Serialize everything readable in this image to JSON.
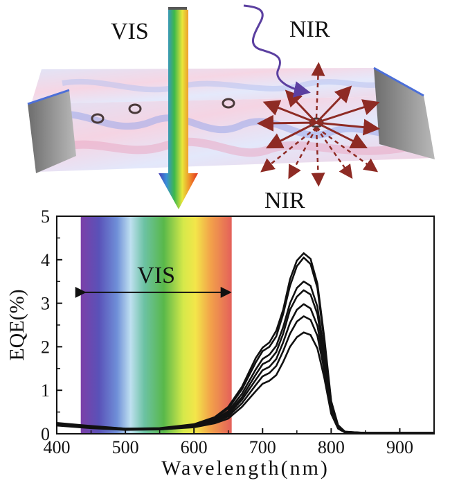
{
  "illustration": {
    "vis_label": "VIS",
    "nir_in_label": "NIR",
    "nir_out_label": "NIR",
    "colors": {
      "film_pink": "#f2c4d6",
      "film_blue": "#8f9fe0",
      "emitter": "#8e2b24",
      "arrow_in": "#5b3fa0"
    }
  },
  "chart_data": {
    "type": "line",
    "title": "",
    "xlabel": "Wavelength(nm)",
    "ylabel": "EQE(%)",
    "xlim": [
      400,
      950
    ],
    "ylim": [
      0,
      5
    ],
    "xticks": [
      400,
      500,
      600,
      700,
      800,
      900
    ],
    "yticks": [
      0,
      1,
      2,
      3,
      4,
      5
    ],
    "grid": false,
    "vis_band": {
      "label": "VIS",
      "x_range": [
        435,
        655
      ]
    },
    "x": [
      400,
      450,
      500,
      550,
      600,
      630,
      650,
      670,
      690,
      700,
      710,
      720,
      730,
      740,
      750,
      760,
      770,
      780,
      790,
      800,
      810,
      820,
      850,
      900,
      950
    ],
    "series": [
      {
        "values": [
          0.25,
          0.18,
          0.12,
          0.13,
          0.22,
          0.38,
          0.62,
          1.08,
          1.74,
          1.98,
          2.1,
          2.37,
          2.85,
          3.55,
          3.98,
          4.15,
          4.02,
          3.45,
          2.2,
          0.75,
          0.2,
          0.05,
          0.02,
          0.02,
          0.02
        ]
      },
      {
        "values": [
          0.24,
          0.17,
          0.12,
          0.12,
          0.21,
          0.36,
          0.58,
          1.02,
          1.64,
          1.9,
          2.0,
          2.24,
          2.75,
          3.4,
          3.85,
          4.05,
          3.9,
          3.35,
          2.1,
          0.72,
          0.19,
          0.05,
          0.02,
          0.02,
          0.02
        ]
      },
      {
        "values": [
          0.23,
          0.16,
          0.11,
          0.12,
          0.19,
          0.33,
          0.52,
          0.92,
          1.48,
          1.72,
          1.82,
          2.02,
          2.45,
          3.0,
          3.35,
          3.5,
          3.4,
          2.92,
          1.85,
          0.66,
          0.17,
          0.04,
          0.02,
          0.02,
          0.02
        ]
      },
      {
        "values": [
          0.22,
          0.16,
          0.11,
          0.11,
          0.18,
          0.31,
          0.48,
          0.84,
          1.36,
          1.6,
          1.68,
          1.88,
          2.3,
          2.85,
          3.15,
          3.3,
          3.2,
          2.75,
          1.75,
          0.62,
          0.16,
          0.04,
          0.02,
          0.02,
          0.02
        ]
      },
      {
        "values": [
          0.21,
          0.15,
          0.1,
          0.11,
          0.17,
          0.29,
          0.44,
          0.78,
          1.24,
          1.46,
          1.54,
          1.72,
          2.1,
          2.55,
          2.85,
          2.98,
          2.88,
          2.48,
          1.6,
          0.58,
          0.15,
          0.04,
          0.02,
          0.02,
          0.02
        ]
      },
      {
        "values": [
          0.2,
          0.14,
          0.1,
          0.1,
          0.16,
          0.27,
          0.4,
          0.7,
          1.12,
          1.32,
          1.4,
          1.56,
          1.9,
          2.3,
          2.58,
          2.7,
          2.62,
          2.25,
          1.45,
          0.52,
          0.14,
          0.03,
          0.02,
          0.02,
          0.02
        ]
      },
      {
        "values": [
          0.19,
          0.13,
          0.09,
          0.1,
          0.15,
          0.24,
          0.35,
          0.62,
          0.98,
          1.15,
          1.22,
          1.35,
          1.65,
          2.0,
          2.22,
          2.33,
          2.27,
          1.96,
          1.28,
          0.46,
          0.12,
          0.03,
          0.02,
          0.02,
          0.02
        ]
      }
    ]
  }
}
